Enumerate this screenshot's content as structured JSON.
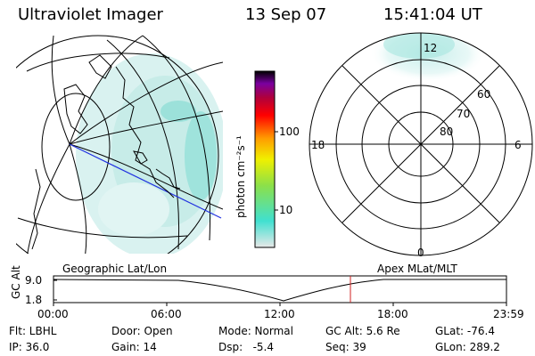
{
  "header": {
    "instrument": "Ultraviolet Imager",
    "date": "13 Sep 07",
    "time": "15:41:04 UT"
  },
  "colorbar": {
    "unit_label": "photon cm⁻²s⁻¹",
    "ticks": [
      "100",
      "10"
    ],
    "stops": [
      "#e8e8e8",
      "#40e0d0",
      "#8be04a",
      "#f0f000",
      "#ff9b00",
      "#ff0000",
      "#b0003b",
      "#7a00a0",
      "#000000"
    ]
  },
  "polar": {
    "mlt_labels": {
      "top": "12",
      "left": "18",
      "right": "6",
      "bottom": "0"
    },
    "lat_labels": [
      "60",
      "70",
      "80"
    ]
  },
  "timeline": {
    "left_label": "Geographic Lat/Lon",
    "right_label": "Apex MLat/MLT",
    "axis_title": "GC Alt",
    "yticks": [
      "9.0",
      "1.8"
    ],
    "xticks": [
      "00:00",
      "06:00",
      "12:00",
      "18:00",
      "23:59"
    ],
    "marker_time": "15:41"
  },
  "status": {
    "row1": [
      {
        "id": "flt",
        "text": "Flt: LBHL"
      },
      {
        "id": "door",
        "text": "Door: Open"
      },
      {
        "id": "mode",
        "text": "Mode: Normal"
      },
      {
        "id": "gcalt",
        "text": "GC Alt: 5.6 Re"
      },
      {
        "id": "glat",
        "text": "GLat: -76.4"
      }
    ],
    "row2": [
      {
        "id": "ip",
        "text": "IP: 36.0"
      },
      {
        "id": "gain",
        "text": "Gain: 14"
      },
      {
        "id": "dsp",
        "text": "Dsp:   -5.4"
      },
      {
        "id": "seq",
        "text": "Seq: 39"
      },
      {
        "id": "glon",
        "text": "GLon: 289.2"
      }
    ]
  }
}
